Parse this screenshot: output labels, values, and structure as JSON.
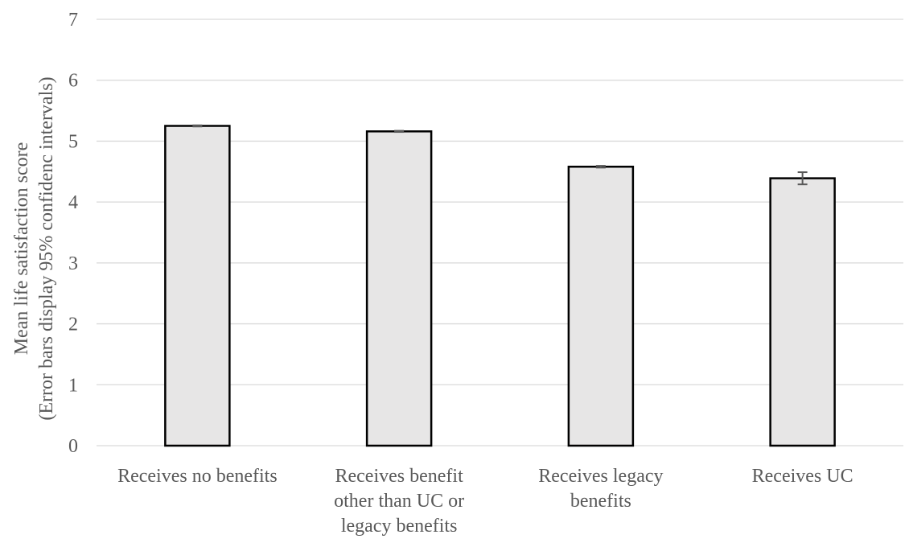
{
  "chart_data": {
    "type": "bar",
    "title": "",
    "xlabel": "",
    "ylabel": [
      "Mean life satisfaction score",
      "(Error bars display 95% confidenc intervals)"
    ],
    "ylim": [
      0,
      7
    ],
    "yticks": [
      0,
      1,
      2,
      3,
      4,
      5,
      6,
      7
    ],
    "grid": true,
    "legend": "none",
    "categories": [
      [
        "Receives no benefits"
      ],
      [
        "Receives benefit",
        "other than UC or",
        "legacy benefits"
      ],
      [
        "Receives legacy",
        "benefits"
      ],
      [
        "Receives UC"
      ]
    ],
    "values": [
      5.25,
      5.16,
      4.58,
      4.39
    ],
    "error_bars": [
      {
        "low": 5.24,
        "high": 5.26
      },
      {
        "low": 5.15,
        "high": 5.17
      },
      {
        "low": 4.565,
        "high": 4.595
      },
      {
        "low": 4.29,
        "high": 4.49
      }
    ],
    "colors": {
      "bar_fill": "#e7e6e6",
      "bar_stroke": "#000000",
      "grid": "#d9d9d9",
      "text": "#595959",
      "error_bar": "#595959"
    }
  }
}
